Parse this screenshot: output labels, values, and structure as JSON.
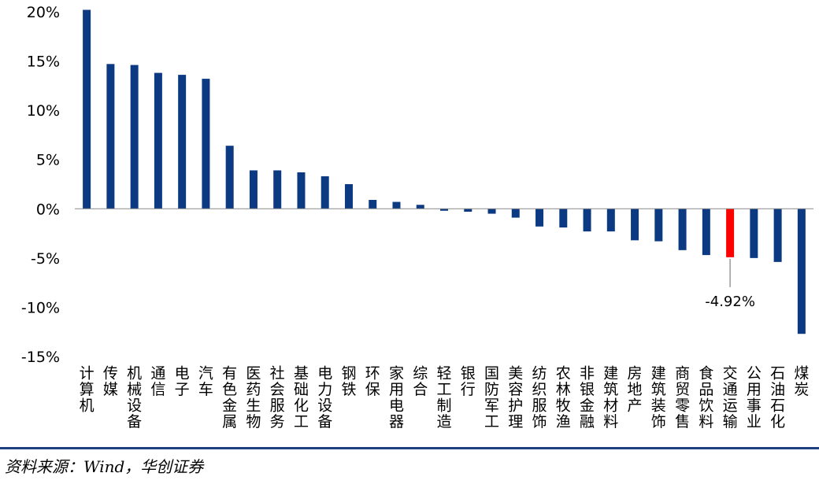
{
  "chart_data": {
    "type": "bar",
    "title": "",
    "xlabel": "",
    "ylabel": "",
    "ylim": [
      -15,
      20
    ],
    "yticks": [
      20,
      15,
      10,
      5,
      0,
      -5,
      -10,
      -15
    ],
    "ytick_labels": [
      "20%",
      "15%",
      "10%",
      "5%",
      "0%",
      "-5%",
      "-10%",
      "-15%"
    ],
    "grid": false,
    "legend": "none",
    "categories": [
      "计算机",
      "传媒",
      "机械设备",
      "通信",
      "电子",
      "汽车",
      "有色金属",
      "医药生物",
      "社会服务",
      "基础化工",
      "电力设备",
      "钢铁",
      "环保",
      "家用电器",
      "综合",
      "轻工制造",
      "银行",
      "国防军工",
      "美容护理",
      "纺织服饰",
      "农林牧渔",
      "非银金融",
      "建筑材料",
      "房地产",
      "建筑装饰",
      "商贸零售",
      "食品饮料",
      "交通运输",
      "公用事业",
      "石油石化",
      "煤炭"
    ],
    "values": [
      20.2,
      14.7,
      14.6,
      13.8,
      13.6,
      13.2,
      6.4,
      3.9,
      3.9,
      3.7,
      3.3,
      2.5,
      0.9,
      0.7,
      0.4,
      -0.2,
      -0.3,
      -0.5,
      -0.9,
      -1.8,
      -1.9,
      -2.3,
      -2.3,
      -3.2,
      -3.3,
      -4.2,
      -4.7,
      -4.92,
      -5.0,
      -5.4,
      -12.7
    ],
    "highlight_index": 27,
    "annotation": {
      "index": 27,
      "text": "-4.92%"
    },
    "colors": {
      "bar": "#0b3a82",
      "highlight": "#ff0000",
      "axis": "#888888"
    }
  },
  "footer": {
    "source": "资料来源：Wind，华创证券",
    "rule_color": "#1f3f7f"
  }
}
